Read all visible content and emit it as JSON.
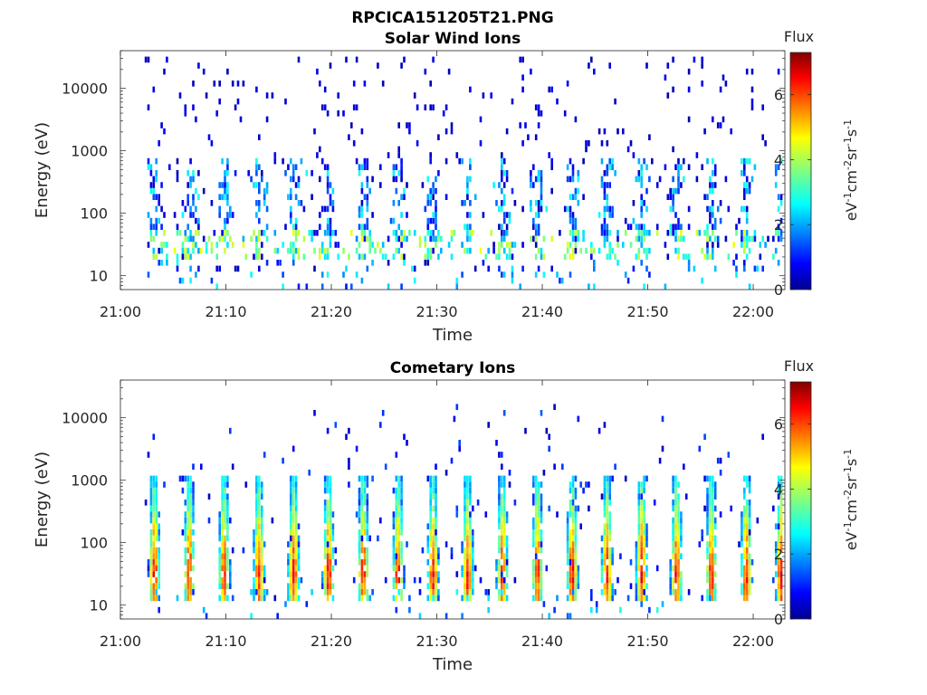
{
  "figure_title": "RPCICA151205T21.PNG",
  "chart_data": [
    {
      "type": "heatmap",
      "title": "Solar Wind Ions",
      "xlabel": "Time",
      "ylabel": "Energy (eV)",
      "x_ticks": [
        "21:00",
        "21:10",
        "21:20",
        "21:30",
        "21:40",
        "21:50",
        "22:00"
      ],
      "x_tick_minutes": [
        0,
        10,
        20,
        30,
        40,
        50,
        60
      ],
      "xlim_minutes": [
        0,
        63
      ],
      "y_scale": "log",
      "y_ticks": [
        "10",
        "100",
        "1000",
        "10000"
      ],
      "y_tick_values": [
        10,
        100,
        1000,
        10000
      ],
      "ylim": [
        6,
        40000
      ],
      "colorbar": {
        "label": "Flux",
        "unit_label": "eV-1cm-2sr-1s-1",
        "ticks": [
          "0",
          "2",
          "4",
          "6"
        ],
        "tick_values": [
          0,
          2,
          4,
          6
        ],
        "range": [
          0,
          7.3
        ],
        "colormap": "jet"
      },
      "data_start_minute": 2.3,
      "data_end_minute": 62.8,
      "pattern": "sparse low-flux counts (about 0-3) scattered across 10-20000 eV; recurring vertical streaks roughly every 3.3 min from 30-500 eV; moderate flux (about 3-5) near 20-40 eV",
      "recurrence_period_minutes": 3.3
    },
    {
      "type": "heatmap",
      "title": "Cometary Ions",
      "xlabel": "Time",
      "ylabel": "Energy (eV)",
      "x_ticks": [
        "21:00",
        "21:10",
        "21:20",
        "21:30",
        "21:40",
        "21:50",
        "22:00"
      ],
      "x_tick_minutes": [
        0,
        10,
        20,
        30,
        40,
        50,
        60
      ],
      "xlim_minutes": [
        0,
        63
      ],
      "y_scale": "log",
      "y_ticks": [
        "10",
        "100",
        "1000",
        "10000"
      ],
      "y_tick_values": [
        10,
        100,
        1000,
        10000
      ],
      "ylim": [
        6,
        40000
      ],
      "colorbar": {
        "label": "Flux",
        "unit_label": "eV-1cm-2sr-1s-1",
        "ticks": [
          "0",
          "2",
          "4",
          "6"
        ],
        "tick_values": [
          0,
          2,
          4,
          6
        ],
        "range": [
          0,
          7.3
        ],
        "colormap": "jet"
      },
      "data_start_minute": 2.3,
      "data_end_minute": 62.8,
      "pattern": "recurring dispersed ion bursts every ~3.3 min; flux 5-6.5 at 15-40 eV decreasing to ~3-4 up to 500-800 eV; sparse counts up to ~12000 eV",
      "recurrence_period_minutes": 3.3
    }
  ],
  "colors": {
    "axis": "#262626",
    "background": "#ffffff"
  }
}
